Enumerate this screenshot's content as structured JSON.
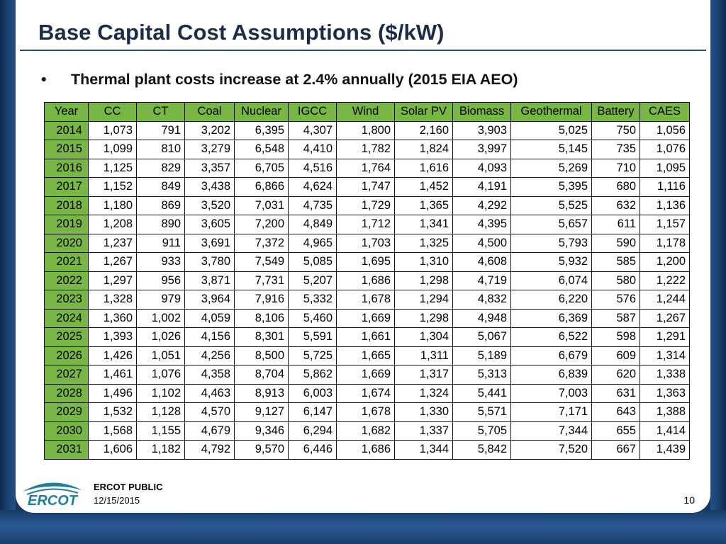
{
  "slide": {
    "title": "Base Capital Cost Assumptions ($/kW)",
    "bullet_marker": "•",
    "bullet": "Thermal plant costs increase at 2.4% annually (2015 EIA AEO)"
  },
  "table": {
    "headers": [
      "Year",
      "CC",
      "CT",
      "Coal",
      "Nuclear",
      "IGCC",
      "Wind",
      "Solar PV",
      "Biomass",
      "Geothermal",
      "Battery",
      "CAES"
    ],
    "rows": [
      [
        "2014",
        "1,073",
        "791",
        "3,202",
        "6,395",
        "4,307",
        "1,800",
        "2,160",
        "3,903",
        "5,025",
        "750",
        "1,056"
      ],
      [
        "2015",
        "1,099",
        "810",
        "3,279",
        "6,548",
        "4,410",
        "1,782",
        "1,824",
        "3,997",
        "5,145",
        "735",
        "1,076"
      ],
      [
        "2016",
        "1,125",
        "829",
        "3,357",
        "6,705",
        "4,516",
        "1,764",
        "1,616",
        "4,093",
        "5,269",
        "710",
        "1,095"
      ],
      [
        "2017",
        "1,152",
        "849",
        "3,438",
        "6,866",
        "4,624",
        "1,747",
        "1,452",
        "4,191",
        "5,395",
        "680",
        "1,116"
      ],
      [
        "2018",
        "1,180",
        "869",
        "3,520",
        "7,031",
        "4,735",
        "1,729",
        "1,365",
        "4,292",
        "5,525",
        "632",
        "1,136"
      ],
      [
        "2019",
        "1,208",
        "890",
        "3,605",
        "7,200",
        "4,849",
        "1,712",
        "1,341",
        "4,395",
        "5,657",
        "611",
        "1,157"
      ],
      [
        "2020",
        "1,237",
        "911",
        "3,691",
        "7,372",
        "4,965",
        "1,703",
        "1,325",
        "4,500",
        "5,793",
        "590",
        "1,178"
      ],
      [
        "2021",
        "1,267",
        "933",
        "3,780",
        "7,549",
        "5,085",
        "1,695",
        "1,310",
        "4,608",
        "5,932",
        "585",
        "1,200"
      ],
      [
        "2022",
        "1,297",
        "956",
        "3,871",
        "7,731",
        "5,207",
        "1,686",
        "1,298",
        "4,719",
        "6,074",
        "580",
        "1,222"
      ],
      [
        "2023",
        "1,328",
        "979",
        "3,964",
        "7,916",
        "5,332",
        "1,678",
        "1,294",
        "4,832",
        "6,220",
        "576",
        "1,244"
      ],
      [
        "2024",
        "1,360",
        "1,002",
        "4,059",
        "8,106",
        "5,460",
        "1,669",
        "1,298",
        "4,948",
        "6,369",
        "587",
        "1,267"
      ],
      [
        "2025",
        "1,393",
        "1,026",
        "4,156",
        "8,301",
        "5,591",
        "1,661",
        "1,304",
        "5,067",
        "6,522",
        "598",
        "1,291"
      ],
      [
        "2026",
        "1,426",
        "1,051",
        "4,256",
        "8,500",
        "5,725",
        "1,665",
        "1,311",
        "5,189",
        "6,679",
        "609",
        "1,314"
      ],
      [
        "2027",
        "1,461",
        "1,076",
        "4,358",
        "8,704",
        "5,862",
        "1,669",
        "1,317",
        "5,313",
        "6,839",
        "620",
        "1,338"
      ],
      [
        "2028",
        "1,496",
        "1,102",
        "4,463",
        "8,913",
        "6,003",
        "1,674",
        "1,324",
        "5,441",
        "7,003",
        "631",
        "1,363"
      ],
      [
        "2029",
        "1,532",
        "1,128",
        "4,570",
        "9,127",
        "6,147",
        "1,678",
        "1,330",
        "5,571",
        "7,171",
        "643",
        "1,388"
      ],
      [
        "2030",
        "1,568",
        "1,155",
        "4,679",
        "9,346",
        "6,294",
        "1,682",
        "1,337",
        "5,705",
        "7,344",
        "655",
        "1,414"
      ],
      [
        "2031",
        "1,606",
        "1,182",
        "4,792",
        "9,570",
        "6,446",
        "1,686",
        "1,344",
        "5,842",
        "7,520",
        "667",
        "1,439"
      ]
    ]
  },
  "footer": {
    "logo_text": "ERCOT",
    "label": "ERCOT PUBLIC",
    "date": "12/15/2015",
    "page_number": "10"
  },
  "colors": {
    "header_fill": "#78b744",
    "logo_teal": "#1f7e9c",
    "frame_blue": "#17365d"
  }
}
